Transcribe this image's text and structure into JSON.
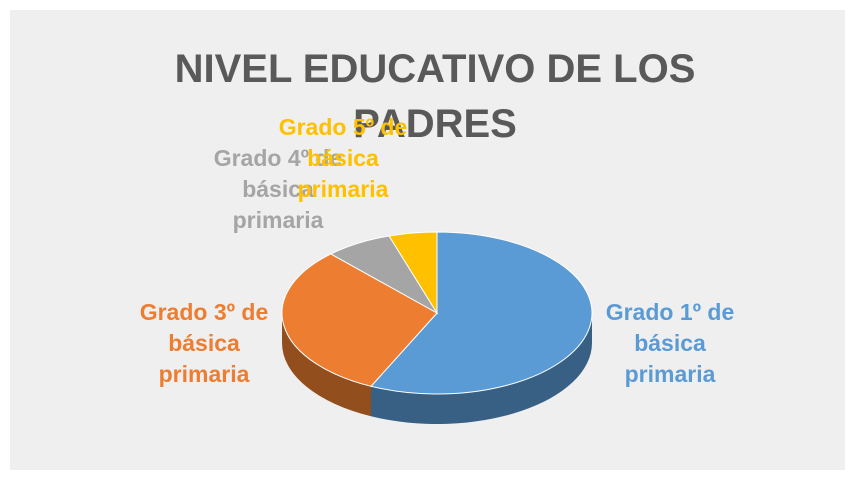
{
  "chart_data": {
    "type": "pie",
    "title": "NIVEL EDUCATIVO DE LOS PADRES",
    "categories": [
      "Grado 1º de básica primaria",
      "Grado 3º de básica primaria",
      "Grado 4º de básica primaria",
      "Grado 5º de básica primaria"
    ],
    "values": [
      57,
      31,
      7,
      5
    ],
    "colors": [
      "#5b9bd5",
      "#ed7d31",
      "#a5a5a5",
      "#ffc000"
    ]
  }
}
